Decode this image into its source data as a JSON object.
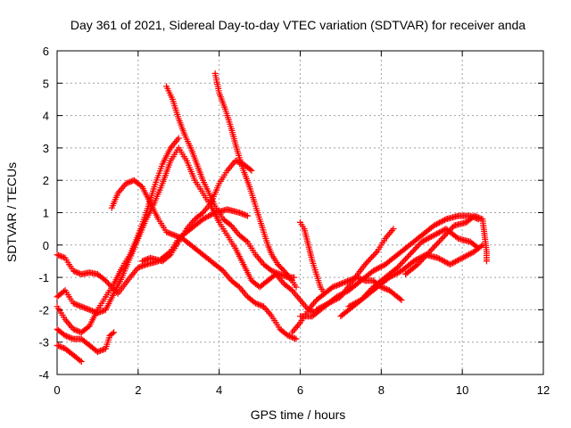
{
  "chart_data": {
    "type": "scatter",
    "title": "Day 361 of 2021, Sidereal Day-to-day VTEC variation (SDTVAR) for receiver anda",
    "xlabel": "GPS time / hours",
    "ylabel": "SDTVAR / TECUs",
    "xlim": [
      0,
      12
    ],
    "ylim": [
      -4,
      6
    ],
    "xticks": [
      "0",
      "2",
      "4",
      "6",
      "8",
      "10",
      "12"
    ],
    "yticks": [
      "-4",
      "-3",
      "-2",
      "-1",
      "0",
      "1",
      "2",
      "3",
      "4",
      "5",
      "6"
    ],
    "grid": true,
    "marker": "+",
    "color": "#ff0000",
    "series": [
      {
        "name": "s1",
        "points": [
          [
            0,
            -0.3
          ],
          [
            0.2,
            -0.4
          ],
          [
            0.4,
            -0.8
          ],
          [
            0.6,
            -0.9
          ],
          [
            0.8,
            -0.85
          ],
          [
            1.0,
            -0.9
          ],
          [
            1.2,
            -1.1
          ],
          [
            1.5,
            -1.5
          ],
          [
            1.8,
            -1.0
          ],
          [
            2.0,
            -0.7
          ],
          [
            2.2,
            -0.6
          ],
          [
            2.5,
            -0.5
          ],
          [
            2.8,
            -0.2
          ],
          [
            3.0,
            0.2
          ],
          [
            3.3,
            0.5
          ],
          [
            3.6,
            0.8
          ],
          [
            3.9,
            1.0
          ],
          [
            4.2,
            1.1
          ],
          [
            4.5,
            1.0
          ],
          [
            4.7,
            0.9
          ]
        ]
      },
      {
        "name": "s2",
        "points": [
          [
            0,
            -1.6
          ],
          [
            0.2,
            -1.4
          ],
          [
            0.4,
            -1.8
          ],
          [
            0.6,
            -1.9
          ],
          [
            0.8,
            -2.0
          ],
          [
            1.0,
            -2.1
          ],
          [
            1.2,
            -2.0
          ],
          [
            1.4,
            -1.5
          ],
          [
            1.6,
            -1.0
          ],
          [
            1.8,
            -0.4
          ],
          [
            2.0,
            0.2
          ],
          [
            2.2,
            0.8
          ],
          [
            2.4,
            1.3
          ],
          [
            2.6,
            1.9
          ],
          [
            2.8,
            2.6
          ],
          [
            3.0,
            3.0
          ],
          [
            3.2,
            2.6
          ],
          [
            3.4,
            2.0
          ],
          [
            3.6,
            1.6
          ],
          [
            3.8,
            1.2
          ],
          [
            4.0,
            0.7
          ],
          [
            4.2,
            0.3
          ],
          [
            4.4,
            -0.1
          ],
          [
            4.6,
            -0.6
          ],
          [
            4.8,
            -1.1
          ],
          [
            5.0,
            -1.3
          ],
          [
            5.2,
            -1.1
          ],
          [
            5.4,
            -0.9
          ],
          [
            5.6,
            -1.2
          ],
          [
            5.8,
            -1.4
          ],
          [
            6.0,
            -1.7
          ],
          [
            6.2,
            -2.0
          ],
          [
            6.4,
            -2.1
          ]
        ]
      },
      {
        "name": "s3",
        "points": [
          [
            0,
            -1.9
          ],
          [
            0.2,
            -2.3
          ],
          [
            0.4,
            -2.6
          ],
          [
            0.6,
            -2.7
          ],
          [
            0.8,
            -2.5
          ],
          [
            1.0,
            -2.0
          ],
          [
            1.2,
            -1.6
          ],
          [
            1.4,
            -1.2
          ],
          [
            1.6,
            -0.7
          ],
          [
            1.8,
            -0.3
          ],
          [
            2.0,
            0.3
          ],
          [
            2.2,
            1.0
          ],
          [
            2.4,
            1.8
          ],
          [
            2.6,
            2.5
          ],
          [
            2.8,
            3.0
          ],
          [
            3.0,
            3.3
          ]
        ]
      },
      {
        "name": "s4",
        "points": [
          [
            0,
            -2.6
          ],
          [
            0.2,
            -2.8
          ],
          [
            0.4,
            -2.9
          ],
          [
            0.6,
            -2.9
          ],
          [
            0.8,
            -3.1
          ],
          [
            1.0,
            -3.3
          ],
          [
            1.2,
            -3.2
          ],
          [
            1.3,
            -2.8
          ],
          [
            1.4,
            -2.7
          ]
        ]
      },
      {
        "name": "s5",
        "points": [
          [
            0,
            -3.1
          ],
          [
            0.2,
            -3.2
          ],
          [
            0.4,
            -3.4
          ],
          [
            0.6,
            -3.6
          ]
        ]
      },
      {
        "name": "s6",
        "points": [
          [
            1.35,
            1.15
          ],
          [
            1.5,
            1.6
          ],
          [
            1.7,
            1.9
          ],
          [
            1.9,
            2.0
          ],
          [
            2.1,
            1.8
          ],
          [
            2.3,
            1.3
          ],
          [
            2.5,
            0.8
          ],
          [
            2.7,
            0.4
          ],
          [
            2.9,
            0.3
          ],
          [
            3.1,
            0.2
          ],
          [
            3.3,
            0.0
          ],
          [
            3.5,
            -0.2
          ],
          [
            3.7,
            -0.4
          ],
          [
            3.9,
            -0.6
          ],
          [
            4.1,
            -0.8
          ],
          [
            4.3,
            -1.1
          ],
          [
            4.5,
            -1.3
          ],
          [
            4.7,
            -1.6
          ],
          [
            4.9,
            -1.8
          ],
          [
            5.1,
            -1.9
          ],
          [
            5.3,
            -2.2
          ],
          [
            5.5,
            -2.6
          ],
          [
            5.7,
            -2.8
          ],
          [
            5.9,
            -2.9
          ]
        ]
      },
      {
        "name": "s7",
        "points": [
          [
            2.7,
            4.9
          ],
          [
            2.85,
            4.5
          ],
          [
            3.0,
            3.9
          ],
          [
            3.15,
            3.4
          ],
          [
            3.3,
            3.0
          ],
          [
            3.45,
            2.5
          ],
          [
            3.6,
            2.0
          ],
          [
            3.75,
            1.6
          ],
          [
            3.9,
            1.2
          ],
          [
            4.1,
            0.8
          ],
          [
            4.3,
            0.6
          ],
          [
            4.5,
            0.3
          ],
          [
            4.7,
            0.1
          ],
          [
            4.9,
            -0.3
          ],
          [
            5.1,
            -0.6
          ],
          [
            5.3,
            -0.8
          ],
          [
            5.5,
            -0.9
          ],
          [
            5.7,
            -1.0
          ],
          [
            5.8,
            -1.1
          ],
          [
            5.9,
            -1.3
          ]
        ]
      },
      {
        "name": "s8",
        "points": [
          [
            3.9,
            5.3
          ],
          [
            4.0,
            4.7
          ],
          [
            4.15,
            4.2
          ],
          [
            4.3,
            3.6
          ],
          [
            4.45,
            2.9
          ],
          [
            4.6,
            2.3
          ],
          [
            4.75,
            1.8
          ],
          [
            4.9,
            1.2
          ],
          [
            5.0,
            0.8
          ],
          [
            5.1,
            0.4
          ],
          [
            5.2,
            0.0
          ],
          [
            5.3,
            -0.3
          ],
          [
            5.45,
            -0.6
          ],
          [
            5.6,
            -0.8
          ],
          [
            5.75,
            -1.0
          ],
          [
            5.85,
            -1.0
          ]
        ]
      },
      {
        "name": "s9",
        "points": [
          [
            2.1,
            -0.5
          ],
          [
            2.3,
            -0.4
          ],
          [
            2.6,
            -0.5
          ],
          [
            2.8,
            -0.3
          ],
          [
            3.0,
            0.1
          ],
          [
            3.2,
            0.5
          ],
          [
            3.4,
            0.8
          ],
          [
            3.6,
            1.0
          ],
          [
            3.8,
            1.3
          ],
          [
            4.0,
            1.9
          ],
          [
            4.2,
            2.3
          ],
          [
            4.4,
            2.6
          ],
          [
            4.6,
            2.5
          ],
          [
            4.8,
            2.3
          ]
        ]
      },
      {
        "name": "s10",
        "points": [
          [
            6.0,
            0.7
          ],
          [
            6.1,
            0.5
          ],
          [
            6.2,
            0.0
          ],
          [
            6.3,
            -0.5
          ],
          [
            6.4,
            -0.9
          ],
          [
            6.5,
            -1.3
          ],
          [
            6.6,
            -1.5
          ]
        ]
      },
      {
        "name": "s11",
        "points": [
          [
            5.8,
            -2.7
          ],
          [
            6.0,
            -2.4
          ],
          [
            6.2,
            -2.0
          ],
          [
            6.4,
            -1.7
          ],
          [
            6.6,
            -1.5
          ],
          [
            6.8,
            -1.3
          ],
          [
            7.0,
            -1.2
          ],
          [
            7.2,
            -1.1
          ],
          [
            7.4,
            -1.0
          ],
          [
            7.6,
            -1.1
          ],
          [
            7.8,
            -1.1
          ],
          [
            8.0,
            -1.3
          ],
          [
            8.2,
            -1.4
          ],
          [
            8.5,
            -1.7
          ]
        ]
      },
      {
        "name": "s12",
        "points": [
          [
            6.0,
            -2.2
          ],
          [
            6.3,
            -2.2
          ],
          [
            6.6,
            -1.9
          ],
          [
            6.9,
            -1.6
          ],
          [
            7.2,
            -1.4
          ],
          [
            7.5,
            -1.1
          ],
          [
            7.8,
            -0.8
          ],
          [
            8.1,
            -0.6
          ],
          [
            8.4,
            -0.3
          ],
          [
            8.7,
            0.0
          ],
          [
            9.0,
            0.3
          ],
          [
            9.3,
            0.6
          ],
          [
            9.6,
            0.8
          ],
          [
            9.9,
            0.9
          ],
          [
            10.2,
            0.9
          ],
          [
            10.4,
            0.8
          ]
        ]
      },
      {
        "name": "s13",
        "points": [
          [
            6.4,
            -2.0
          ],
          [
            6.7,
            -1.8
          ],
          [
            7.0,
            -1.6
          ],
          [
            7.3,
            -1.1
          ],
          [
            7.6,
            -0.6
          ],
          [
            7.9,
            -0.2
          ],
          [
            8.1,
            0.2
          ],
          [
            8.3,
            0.5
          ]
        ]
      },
      {
        "name": "s14",
        "points": [
          [
            7.2,
            -1.9
          ],
          [
            7.5,
            -1.7
          ],
          [
            7.8,
            -1.3
          ],
          [
            8.1,
            -1.0
          ],
          [
            8.4,
            -0.7
          ],
          [
            8.7,
            -0.3
          ],
          [
            9.0,
            0.1
          ],
          [
            9.3,
            0.3
          ],
          [
            9.6,
            0.5
          ],
          [
            9.9,
            0.2
          ],
          [
            10.2,
            0.1
          ],
          [
            10.4,
            -0.1
          ]
        ]
      },
      {
        "name": "s15",
        "points": [
          [
            7.0,
            -2.2
          ],
          [
            7.3,
            -1.9
          ],
          [
            7.6,
            -1.6
          ],
          [
            7.9,
            -1.3
          ],
          [
            8.2,
            -1.0
          ],
          [
            8.5,
            -0.8
          ],
          [
            8.8,
            -0.5
          ],
          [
            9.1,
            -0.3
          ],
          [
            9.4,
            -0.4
          ],
          [
            9.7,
            -0.6
          ],
          [
            10.0,
            -0.4
          ],
          [
            10.3,
            -0.2
          ],
          [
            10.5,
            0.0
          ]
        ]
      },
      {
        "name": "s16",
        "points": [
          [
            8.6,
            -0.9
          ],
          [
            8.9,
            -0.6
          ],
          [
            9.2,
            -0.2
          ],
          [
            9.5,
            0.2
          ],
          [
            9.8,
            0.6
          ],
          [
            10.1,
            0.7
          ],
          [
            10.3,
            0.9
          ],
          [
            10.5,
            0.8
          ],
          [
            10.55,
            0.3
          ],
          [
            10.6,
            -0.2
          ],
          [
            10.6,
            -0.5
          ]
        ]
      }
    ]
  }
}
